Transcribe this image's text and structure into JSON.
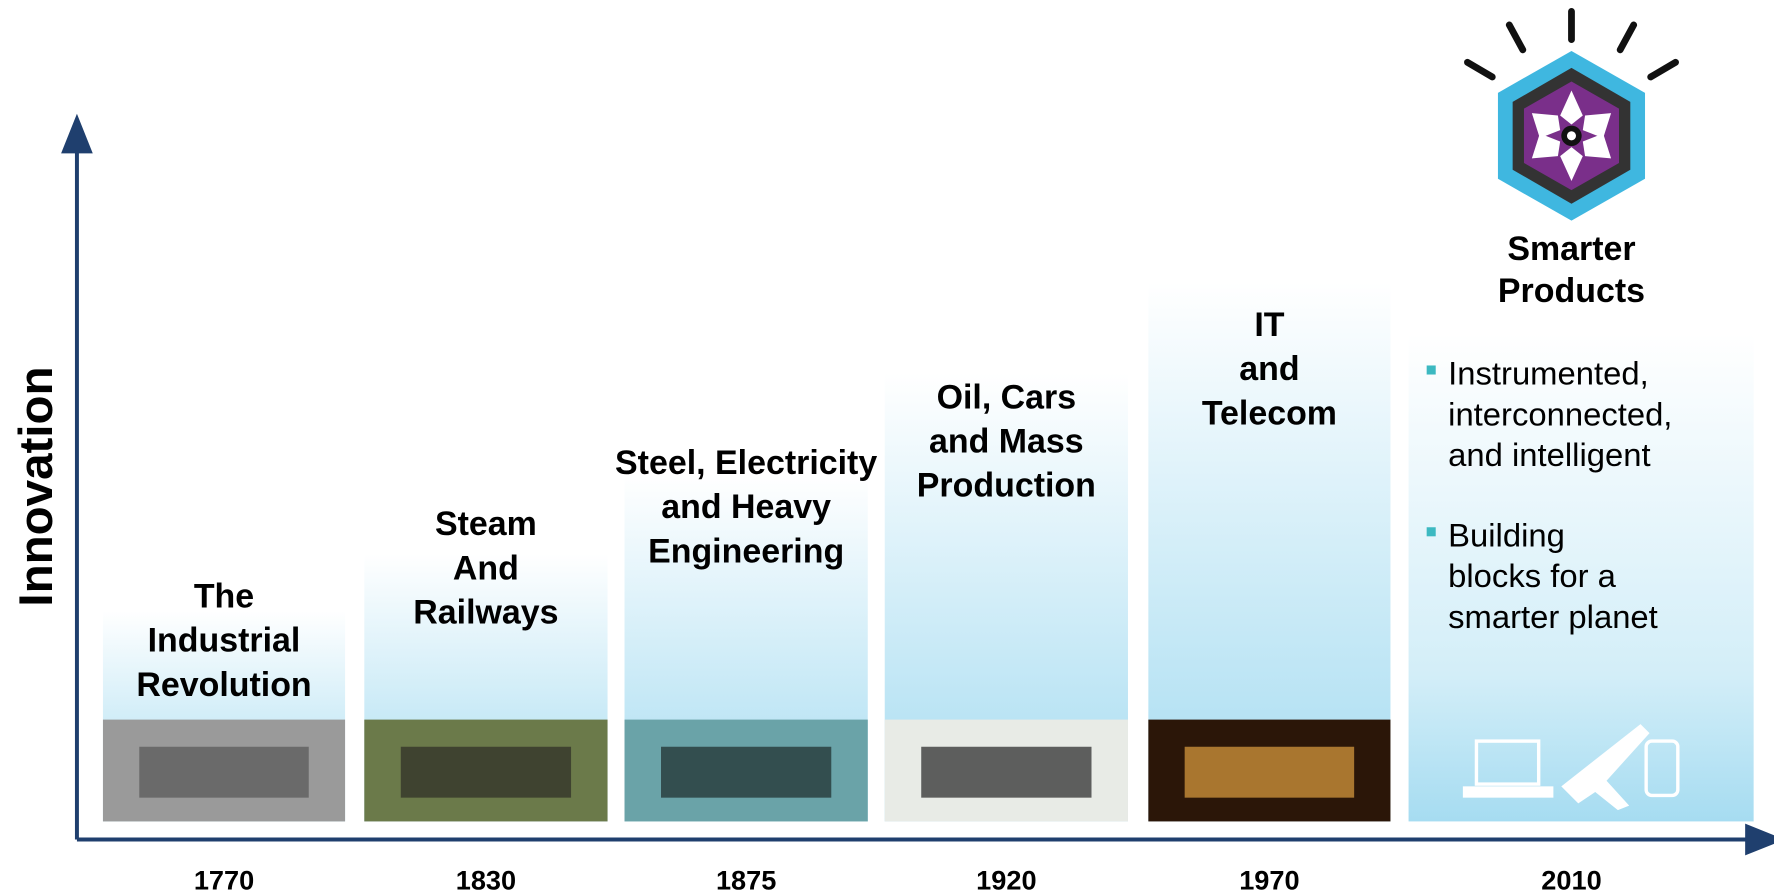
{
  "y_axis_label": "Innovation",
  "eras": [
    {
      "year": "1770",
      "label_lines": [
        "The",
        "Industrial",
        "Revolution"
      ]
    },
    {
      "year": "1830",
      "label_lines": [
        "Steam",
        "And",
        "Railways"
      ]
    },
    {
      "year": "1875",
      "label_lines": [
        "Steel, Electricity",
        "and Heavy",
        "Engineering"
      ]
    },
    {
      "year": "1920",
      "label_lines": [
        "Oil, Cars",
        "and Mass",
        "Production"
      ]
    },
    {
      "year": "1970",
      "label_lines": [
        "IT",
        "and",
        "Telecom"
      ]
    },
    {
      "year": "2010",
      "label_lines": [
        "Smarter",
        "Products"
      ],
      "bullets": [
        [
          "Instrumented,",
          "interconnected,",
          "and intelligent"
        ],
        [
          "Building",
          "blocks for a",
          "smarter planet"
        ]
      ]
    }
  ]
}
